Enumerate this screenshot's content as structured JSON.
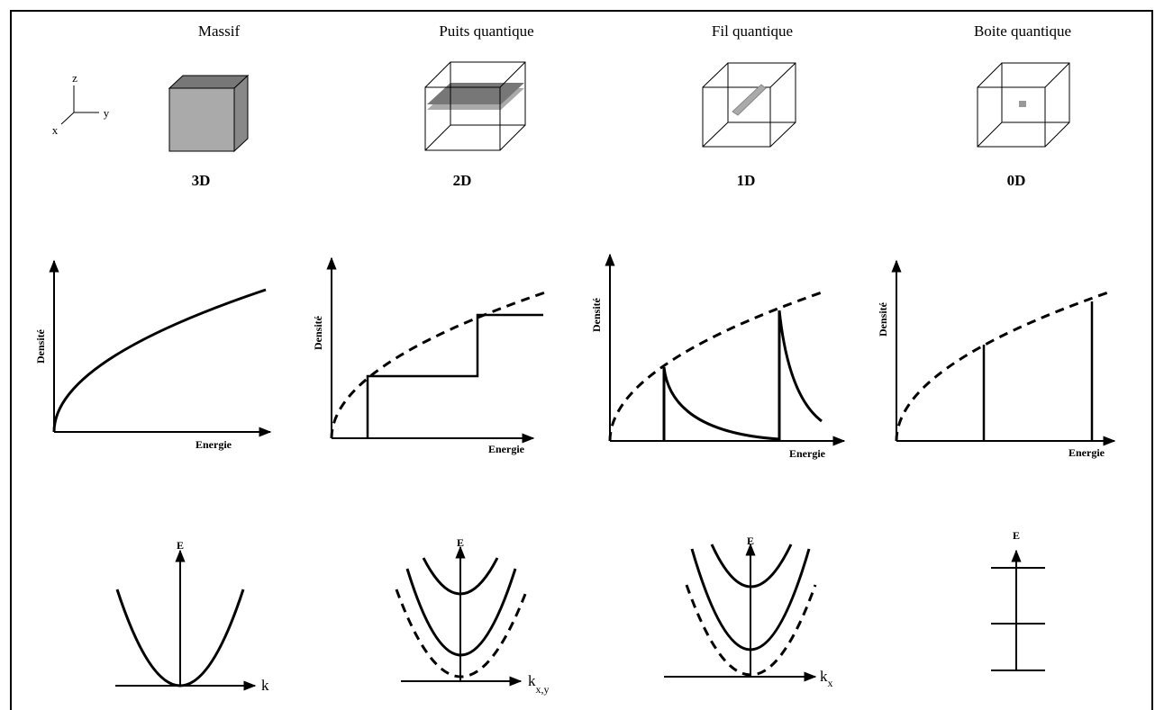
{
  "axes_icon": {
    "z": "z",
    "y": "y",
    "x": "x"
  },
  "columns": [
    {
      "title": "Massif",
      "dimension": "3D",
      "dos_ylabel": "Densité",
      "dos_xlabel": "Energie",
      "disp_ylabel": "E",
      "disp_xlabel": "k"
    },
    {
      "title": "Puits quantique",
      "dimension": "2D",
      "dos_ylabel": "Densité",
      "dos_xlabel": "Energie",
      "disp_ylabel": "E",
      "disp_xlabel": "k",
      "disp_xsub": "x,y"
    },
    {
      "title": "Fil quantique",
      "dimension": "1D",
      "dos_ylabel": "Densité",
      "dos_xlabel": "Energie",
      "disp_ylabel": "E",
      "disp_xlabel": "k",
      "disp_xsub": "x"
    },
    {
      "title": "Boite quantique",
      "dimension": "0D",
      "dos_ylabel": "Densité",
      "dos_xlabel": "Energie",
      "disp_ylabel": "E"
    }
  ]
}
